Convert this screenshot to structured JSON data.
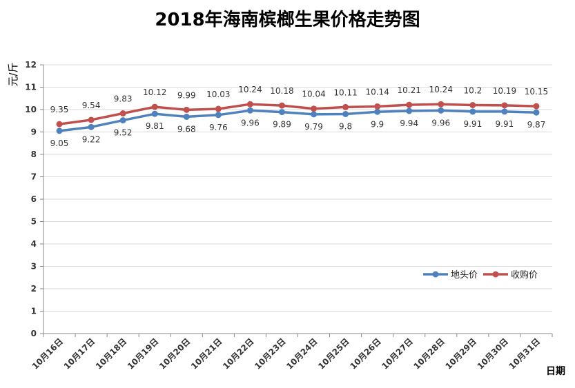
{
  "chart_data": {
    "type": "line",
    "title": "2018年海南槟榔生果价格走势图",
    "xlabel": "日期",
    "ylabel": "元/斤",
    "ylim": [
      0,
      12
    ],
    "yticks": [
      "0",
      "1",
      "2",
      "3",
      "4",
      "5",
      "6",
      "7",
      "8",
      "9",
      "10",
      "11",
      "12"
    ],
    "categories": [
      "10月16日",
      "10月17日",
      "10月18日",
      "10月19日",
      "10月20日",
      "10月21日",
      "10月22日",
      "10月23日",
      "10月24日",
      "10月25日",
      "10月26日",
      "10月27日",
      "10月28日",
      "10月29日",
      "10月30日",
      "10月31日"
    ],
    "grid": true,
    "legend_position": "right",
    "series": [
      {
        "name": "地头价",
        "color": "#4F81BD",
        "values": [
          9.05,
          9.22,
          9.52,
          9.81,
          9.68,
          9.76,
          9.96,
          9.89,
          9.79,
          9.8,
          9.9,
          9.94,
          9.96,
          9.91,
          9.91,
          9.87
        ],
        "labels": [
          "9.05",
          "9.22",
          "9.52",
          "9.81",
          "9.68",
          "9.76",
          "9.96",
          "9.89",
          "9.79",
          "9.8",
          "9.9",
          "9.94",
          "9.96",
          "9.91",
          "9.91",
          "9.87"
        ]
      },
      {
        "name": "收购价",
        "color": "#C0504D",
        "values": [
          9.35,
          9.54,
          9.83,
          10.12,
          9.99,
          10.03,
          10.24,
          10.18,
          10.04,
          10.11,
          10.14,
          10.21,
          10.24,
          10.2,
          10.19,
          10.15
        ],
        "labels": [
          "9.35",
          "9.54",
          "9.83",
          "10.12",
          "9.99",
          "10.03",
          "10.24",
          "10.18",
          "10.04",
          "10.11",
          "10.14",
          "10.21",
          "10.24",
          "10.2",
          "10.19",
          "10.15"
        ]
      }
    ]
  }
}
